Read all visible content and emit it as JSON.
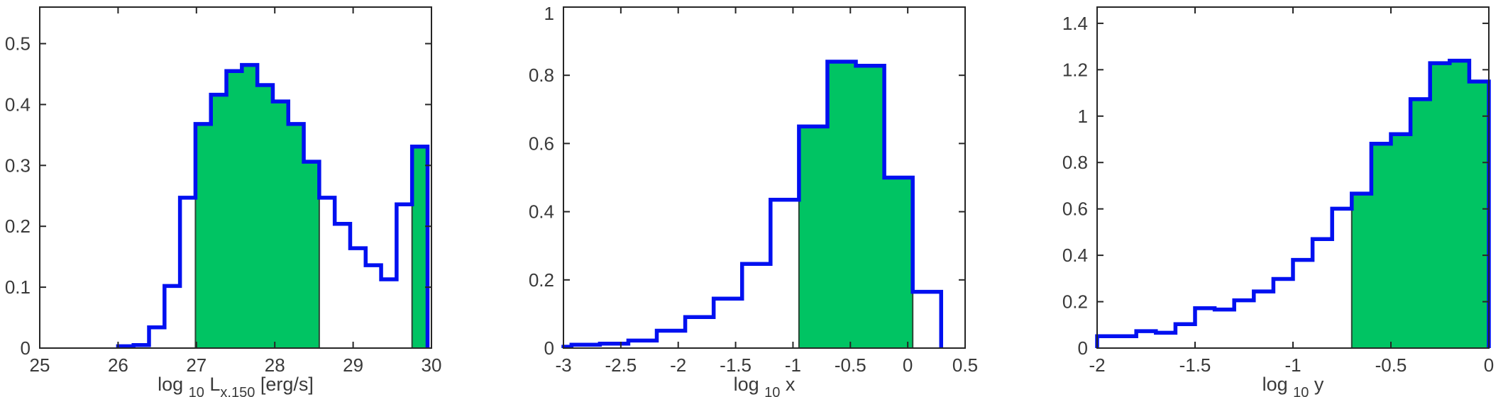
{
  "figure": {
    "title": "",
    "background": "#ffffff"
  },
  "colors": {
    "histogram_line": "#0010f0",
    "region_fill": "#00c463",
    "region_edge": "#2b4636",
    "axis": "#262626",
    "text": "#3a3a3a"
  },
  "chart_data": [
    {
      "type": "histogram",
      "panel": "left",
      "xlabel_segments": [
        {
          "t": "log "
        },
        {
          "t": "10",
          "sub": true
        },
        {
          "t": " L",
          "sub": false
        },
        {
          "t": "x,150",
          "sub": true
        },
        {
          "t": "  [erg/s]",
          "sub": false
        }
      ],
      "xlim": [
        25,
        30
      ],
      "ylim": [
        0,
        0.56
      ],
      "xticks": [
        {
          "v": 25,
          "label": "25"
        },
        {
          "v": 26,
          "label": "26"
        },
        {
          "v": 27,
          "label": "27"
        },
        {
          "v": 28,
          "label": "28"
        },
        {
          "v": 29,
          "label": "29"
        },
        {
          "v": 30,
          "label": "30"
        }
      ],
      "yticks": [
        {
          "v": 0,
          "label": "0"
        },
        {
          "v": 0.1,
          "label": "0.1"
        },
        {
          "v": 0.2,
          "label": "0.2"
        },
        {
          "v": 0.3,
          "label": "0.3"
        },
        {
          "v": 0.4,
          "label": "0.4"
        },
        {
          "v": 0.5,
          "label": "0.5"
        }
      ],
      "bins": {
        "start": 26.0,
        "width": 0.1975,
        "values": [
          0.003,
          0.005,
          0.034,
          0.102,
          0.247,
          0.368,
          0.416,
          0.455,
          0.465,
          0.432,
          0.405,
          0.368,
          0.306,
          0.247,
          0.204,
          0.164,
          0.136,
          0.113,
          0.236,
          0.331
        ]
      },
      "filled_bin_runs": [
        [
          5,
          12
        ],
        [
          19,
          19
        ]
      ],
      "grid": false,
      "legend": null
    },
    {
      "type": "histogram",
      "panel": "middle",
      "xlabel_segments": [
        {
          "t": "log "
        },
        {
          "t": "10",
          "sub": true
        },
        {
          "t": " x",
          "sub": false
        }
      ],
      "xlim": [
        -3,
        0.5
      ],
      "ylim": [
        0,
        1.0
      ],
      "xticks": [
        {
          "v": -3,
          "label": "-3"
        },
        {
          "v": -2.5,
          "label": "-2.5"
        },
        {
          "v": -2,
          "label": "-2"
        },
        {
          "v": -1.5,
          "label": "-1.5"
        },
        {
          "v": -1,
          "label": "-1"
        },
        {
          "v": -0.5,
          "label": "-0.5"
        },
        {
          "v": 0,
          "label": "0"
        },
        {
          "v": 0.5,
          "label": "0.5"
        }
      ],
      "yticks": [
        {
          "v": 0,
          "label": "0"
        },
        {
          "v": 0.2,
          "label": "0.2"
        },
        {
          "v": 0.4,
          "label": "0.4"
        },
        {
          "v": 0.6,
          "label": "0.6"
        },
        {
          "v": 0.8,
          "label": "0.8"
        },
        {
          "v": 1,
          "label": "1"
        }
      ],
      "bins": {
        "start": -3.178,
        "width": 0.2478,
        "values": [
          0.004,
          0.01,
          0.013,
          0.022,
          0.051,
          0.091,
          0.145,
          0.247,
          0.435,
          0.65,
          0.84,
          0.828,
          0.5,
          0.165
        ]
      },
      "filled_bin_runs": [
        [
          9,
          12
        ]
      ],
      "grid": false,
      "legend": null
    },
    {
      "type": "histogram",
      "panel": "right",
      "xlabel_segments": [
        {
          "t": "log "
        },
        {
          "t": "10",
          "sub": true
        },
        {
          "t": " y",
          "sub": false
        }
      ],
      "xlim": [
        -2,
        0
      ],
      "ylim": [
        0,
        1.47
      ],
      "xticks": [
        {
          "v": -2,
          "label": "-2"
        },
        {
          "v": -1.5,
          "label": "-1.5"
        },
        {
          "v": -1,
          "label": "-1"
        },
        {
          "v": -0.5,
          "label": "-0.5"
        },
        {
          "v": 0,
          "label": "0"
        }
      ],
      "yticks": [
        {
          "v": 0,
          "label": "0"
        },
        {
          "v": 0.2,
          "label": "0.2"
        },
        {
          "v": 0.4,
          "label": "0.4"
        },
        {
          "v": 0.6,
          "label": "0.6"
        },
        {
          "v": 0.8,
          "label": "0.8"
        },
        {
          "v": 1,
          "label": "1"
        },
        {
          "v": 1.2,
          "label": "1.2"
        },
        {
          "v": 1.4,
          "label": "1.4"
        }
      ],
      "bins": {
        "start": -2.0,
        "width": 0.1,
        "values": [
          0.051,
          0.051,
          0.073,
          0.066,
          0.103,
          0.172,
          0.166,
          0.206,
          0.244,
          0.298,
          0.38,
          0.47,
          0.601,
          0.666,
          0.881,
          0.922,
          1.073,
          1.228,
          1.239,
          1.149
        ]
      },
      "filled_bin_runs": [
        [
          13,
          19
        ]
      ],
      "grid": false,
      "legend": null
    }
  ]
}
